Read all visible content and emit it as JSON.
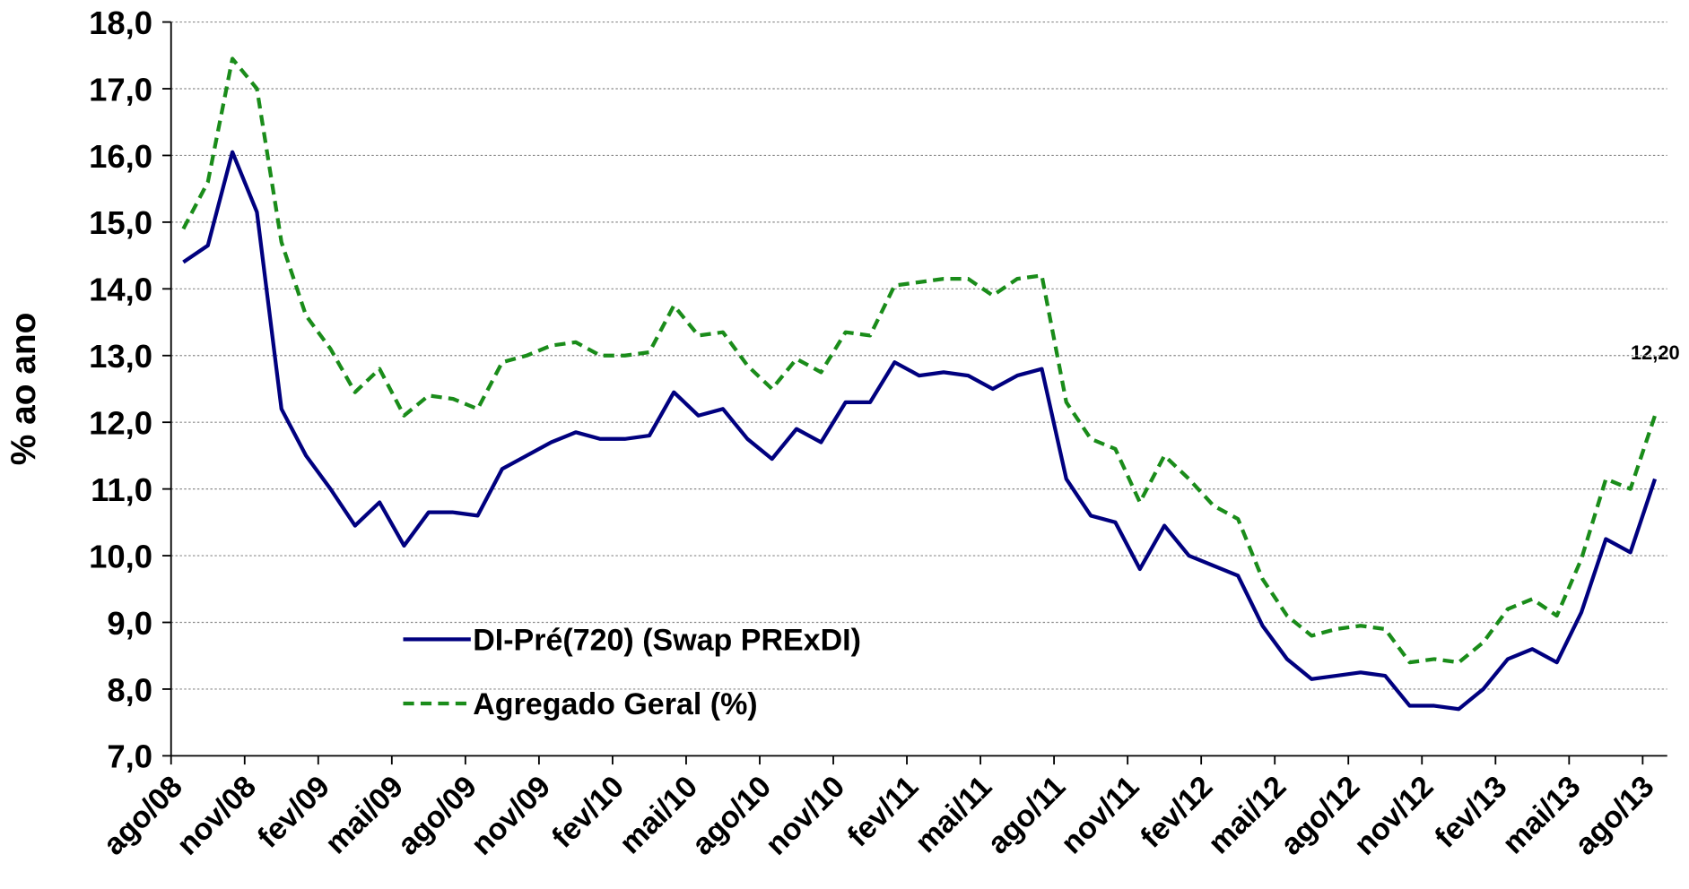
{
  "chart_data": {
    "type": "line",
    "ylabel": "% ao ano",
    "annotation": "12,20",
    "categories": [
      "ago/08",
      null,
      null,
      "nov/08",
      null,
      null,
      "fev/09",
      null,
      null,
      "mai/09",
      null,
      null,
      "ago/09",
      null,
      null,
      "nov/09",
      null,
      null,
      "fev/10",
      null,
      null,
      "mai/10",
      null,
      null,
      "ago/10",
      null,
      null,
      "nov/10",
      null,
      null,
      "fev/11",
      null,
      null,
      "mai/11",
      null,
      null,
      "ago/11",
      null,
      null,
      "nov/11",
      null,
      null,
      "fev/12",
      null,
      null,
      "mai/12",
      null,
      null,
      "ago/12",
      null,
      null,
      "nov/12",
      null,
      null,
      "fev/13",
      null,
      null,
      "mai/13",
      null,
      null,
      "ago/13"
    ],
    "series": [
      {
        "name": "DI-Pré(720) (Swap PRExDI)",
        "color": "#00007f",
        "dash": false,
        "values": [
          14.4,
          14.65,
          16.05,
          15.15,
          12.2,
          11.5,
          11.0,
          10.45,
          10.8,
          10.15,
          10.65,
          10.65,
          10.6,
          11.3,
          11.5,
          11.7,
          11.85,
          11.75,
          11.75,
          11.8,
          12.45,
          12.1,
          12.2,
          11.75,
          11.45,
          11.9,
          11.7,
          12.3,
          12.3,
          12.9,
          12.7,
          12.75,
          12.7,
          12.5,
          12.7,
          12.8,
          11.15,
          10.6,
          10.5,
          9.8,
          10.45,
          10.0,
          9.85,
          9.7,
          8.95,
          8.45,
          8.15,
          8.2,
          8.25,
          8.2,
          7.75,
          7.75,
          7.7,
          8.0,
          8.45,
          8.6,
          8.4,
          9.15,
          10.25,
          10.05,
          11.15
        ]
      },
      {
        "name": "Agregado Geral (%)",
        "color": "#1a8c1a",
        "dash": true,
        "values": [
          14.9,
          15.6,
          17.45,
          17.0,
          14.7,
          13.6,
          13.1,
          12.45,
          12.8,
          12.1,
          12.4,
          12.35,
          12.2,
          12.9,
          13.0,
          13.15,
          13.2,
          13.0,
          13.0,
          13.05,
          13.75,
          13.3,
          13.35,
          12.85,
          12.5,
          12.95,
          12.75,
          13.35,
          13.3,
          14.05,
          14.1,
          14.15,
          14.15,
          13.9,
          14.15,
          14.2,
          12.3,
          11.75,
          11.6,
          10.8,
          11.5,
          11.15,
          10.75,
          10.55,
          9.65,
          9.1,
          8.8,
          8.9,
          8.95,
          8.9,
          8.4,
          8.45,
          8.4,
          8.7,
          9.2,
          9.35,
          9.1,
          9.95,
          11.15,
          11.0,
          12.1
        ]
      }
    ],
    "ylim": [
      7,
      18
    ],
    "yticks": [
      {
        "value": 7,
        "label": "7,0"
      },
      {
        "value": 8,
        "label": "8,0"
      },
      {
        "value": 9,
        "label": "9,0"
      },
      {
        "value": 10,
        "label": "10,0"
      },
      {
        "value": 11,
        "label": "11,0"
      },
      {
        "value": 12,
        "label": "12,0"
      },
      {
        "value": 13,
        "label": "13,0"
      },
      {
        "value": 14,
        "label": "14,0"
      },
      {
        "value": 15,
        "label": "15,0"
      },
      {
        "value": 16,
        "label": "16,0"
      },
      {
        "value": 17,
        "label": "17,0"
      },
      {
        "value": 18,
        "label": "18,0"
      }
    ],
    "grid": true
  }
}
